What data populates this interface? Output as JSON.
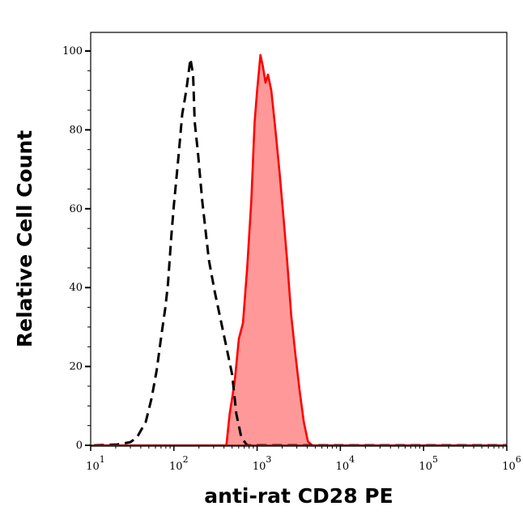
{
  "chart_data": {
    "type": "area",
    "title": "",
    "xlabel": "anti-rat CD28 PE",
    "ylabel": "Relative Cell Count",
    "xscale": "log",
    "xlim": [
      10,
      1000000
    ],
    "ylim": [
      0,
      105
    ],
    "x_ticks": [
      {
        "value": 10,
        "base": "10",
        "exp": "1"
      },
      {
        "value": 100,
        "base": "10",
        "exp": "2"
      },
      {
        "value": 1000,
        "base": "10",
        "exp": "3"
      },
      {
        "value": 10000,
        "base": "10",
        "exp": "4"
      },
      {
        "value": 100000,
        "base": "10",
        "exp": "5"
      },
      {
        "value": 1000000,
        "base": "10",
        "exp": "6"
      }
    ],
    "y_ticks": [
      "0",
      "20",
      "40",
      "60",
      "80",
      "100"
    ],
    "grid": false,
    "series": [
      {
        "style": "dashed-line",
        "color": "#000000",
        "x": [
          11,
          21,
          30,
          36,
          46,
          54,
          62,
          72,
          79,
          85,
          93,
          100,
          112,
          126,
          141,
          158,
          170,
          178,
          195,
          219,
          263,
          309,
          363,
          427,
          501,
          562,
          646,
          759,
          3162,
          1000000
        ],
        "y": [
          0,
          0.2,
          0.8,
          2,
          6,
          12,
          19,
          29,
          35,
          41,
          53,
          61,
          72,
          84,
          90,
          98,
          94,
          82,
          74,
          62,
          47,
          39,
          32,
          25,
          18,
          8,
          2,
          0,
          0,
          0
        ]
      },
      {
        "style": "filled-line",
        "color": "#ff0000",
        "fill": "#ff9999",
        "x": [
          11,
          427,
          468,
          537,
          603,
          676,
          759,
          851,
          933,
          1000,
          1096,
          1175,
          1259,
          1349,
          1479,
          1660,
          1862,
          2089,
          2291,
          2570,
          2884,
          3236,
          3631,
          4074,
          4571,
          1000000
        ],
        "y": [
          0,
          0,
          8,
          16,
          27,
          31,
          45,
          62,
          82,
          90,
          99,
          96,
          92,
          94,
          90,
          80,
          69,
          57,
          47,
          33,
          23,
          14,
          6,
          1,
          0,
          0
        ]
      }
    ]
  }
}
